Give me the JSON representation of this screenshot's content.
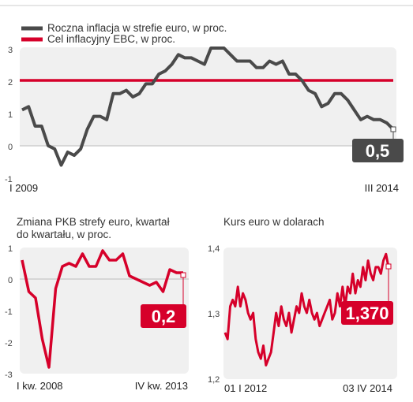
{
  "chart_data": [
    {
      "type": "line",
      "ylim": [
        -1,
        3
      ],
      "yticks": [
        "-1",
        "0",
        "1",
        "2",
        "3"
      ],
      "x_start_label": "I 2009",
      "x_end_label": "III 2014",
      "grid": false,
      "legend_position": "top-left",
      "callout": "0,5",
      "colors": {
        "series": "#4a4a4a",
        "target": "#d6002a",
        "callout": "#4a4a4a",
        "panel": "#f0f0f0"
      },
      "series": [
        {
          "name": "Roczna inflacja w strefie euro, w proc.",
          "values": [
            1.1,
            1.2,
            0.6,
            0.6,
            0.0,
            -0.1,
            -0.6,
            -0.2,
            -0.3,
            -0.1,
            0.5,
            0.9,
            0.9,
            0.8,
            1.6,
            1.6,
            1.7,
            1.5,
            1.6,
            1.9,
            1.9,
            2.2,
            2.3,
            2.5,
            2.8,
            2.7,
            2.7,
            2.6,
            2.5,
            3.0,
            3.0,
            3.0,
            2.8,
            2.6,
            2.6,
            2.6,
            2.4,
            2.4,
            2.6,
            2.5,
            2.6,
            2.2,
            2.2,
            2.0,
            1.7,
            1.6,
            1.2,
            1.3,
            1.6,
            1.6,
            1.4,
            1.1,
            0.8,
            0.9,
            0.8,
            0.8,
            0.7,
            0.5
          ]
        },
        {
          "name": "Cel inflacyjny EBC, w proc.",
          "values": [
            2,
            2
          ]
        }
      ]
    },
    {
      "type": "line",
      "title": "Zmiana PKB strefy euro, kwartał do kwartału, w proc.",
      "ylim": [
        -3,
        1
      ],
      "yticks": [
        "-3",
        "-2",
        "-1",
        "0",
        "1"
      ],
      "x_start_label": "I kw. 2008",
      "x_end_label": "IV kw. 2013",
      "callout": "0,2",
      "colors": {
        "series": "#d6002a",
        "callout": "#d6002a",
        "panel": "#f0f0f0"
      },
      "series": [
        {
          "values": [
            0.6,
            -0.4,
            -0.6,
            -1.9,
            -2.8,
            -0.3,
            0.4,
            0.5,
            0.4,
            0.8,
            0.4,
            0.4,
            0.9,
            0.6,
            0.6,
            0.8,
            0.1,
            0.0,
            -0.1,
            -0.2,
            -0.1,
            -0.4,
            0.3,
            0.2,
            0.2
          ]
        }
      ]
    },
    {
      "type": "line",
      "title": "Kurs euro w dolarach",
      "ylim": [
        1.2,
        1.4
      ],
      "yticks": [
        "1,2",
        "1,3",
        "1,4"
      ],
      "x_start_label": "01 I 2012",
      "x_end_label": "03 IV 2014",
      "callout": "1,370",
      "colors": {
        "series": "#d6002a",
        "callout": "#d6002a",
        "panel": "#f0f0f0"
      },
      "series": [
        {
          "values": [
            1.27,
            1.26,
            1.31,
            1.32,
            1.31,
            1.34,
            1.31,
            1.33,
            1.32,
            1.3,
            1.29,
            1.3,
            1.26,
            1.24,
            1.23,
            1.25,
            1.22,
            1.23,
            1.24,
            1.27,
            1.3,
            1.28,
            1.31,
            1.29,
            1.28,
            1.3,
            1.27,
            1.29,
            1.31,
            1.3,
            1.33,
            1.31,
            1.3,
            1.32,
            1.3,
            1.29,
            1.3,
            1.28,
            1.29,
            1.3,
            1.31,
            1.32,
            1.29,
            1.3,
            1.33,
            1.31,
            1.34,
            1.31,
            1.34,
            1.33,
            1.36,
            1.33,
            1.35,
            1.34,
            1.37,
            1.35,
            1.38,
            1.36,
            1.35,
            1.37,
            1.37,
            1.36,
            1.38,
            1.39,
            1.37
          ]
        }
      ]
    }
  ]
}
